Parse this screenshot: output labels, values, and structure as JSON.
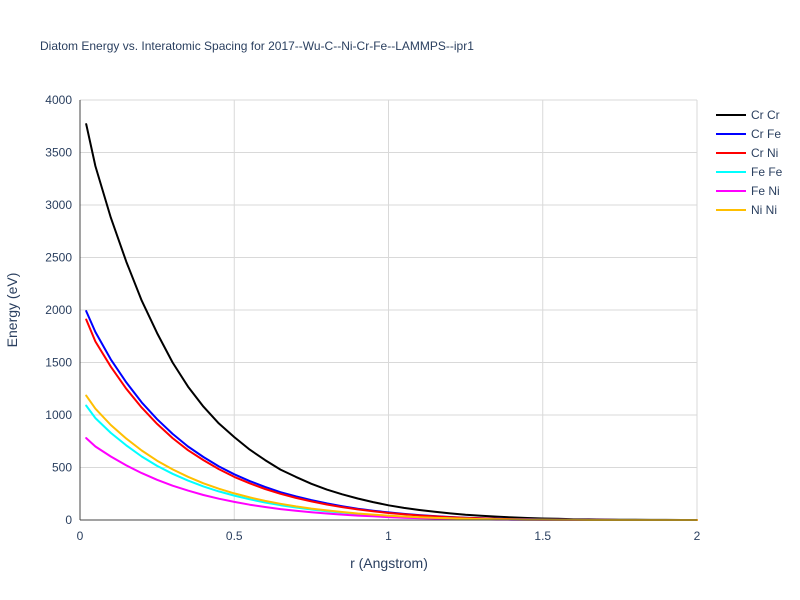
{
  "chart_data": {
    "type": "line",
    "title": "Diatom Energy vs. Interatomic Spacing for 2017--Wu-C--Ni-Cr-Fe--LAMMPS--ipr1",
    "xlabel": "r (Angstrom)",
    "ylabel": "Energy (eV)",
    "xlim": [
      0,
      2
    ],
    "ylim": [
      0,
      4000
    ],
    "xticks": [
      0,
      0.5,
      1,
      1.5,
      2
    ],
    "xtick_labels": [
      "0",
      "0.5",
      "1",
      "1.5",
      "2"
    ],
    "yticks": [
      0,
      500,
      1000,
      1500,
      2000,
      2500,
      3000,
      3500,
      4000
    ],
    "ytick_labels": [
      "0",
      "500",
      "1000",
      "1500",
      "2000",
      "2500",
      "3000",
      "3500",
      "4000"
    ],
    "grid": true,
    "legend_position": "top-right",
    "x": [
      0.02,
      0.05,
      0.1,
      0.15,
      0.2,
      0.25,
      0.3,
      0.35,
      0.4,
      0.45,
      0.5,
      0.55,
      0.6,
      0.65,
      0.7,
      0.75,
      0.8,
      0.85,
      0.9,
      0.95,
      1.0,
      1.05,
      1.1,
      1.15,
      1.2,
      1.25,
      1.3,
      1.35,
      1.4,
      1.45,
      1.5,
      1.55,
      1.6,
      1.65,
      1.7,
      1.75,
      1.8,
      1.85,
      1.9,
      1.95,
      2.0
    ],
    "series": [
      {
        "name": "Cr Cr",
        "color": "#000000",
        "values": [
          3770,
          3370,
          2880,
          2460,
          2090,
          1780,
          1500,
          1270,
          1080,
          920,
          790,
          670,
          570,
          480,
          410,
          345,
          290,
          245,
          205,
          170,
          140,
          115,
          95,
          78,
          63,
          50,
          40,
          32,
          25,
          19,
          14,
          11,
          8,
          6,
          4,
          3,
          2,
          1,
          1,
          0,
          0
        ]
      },
      {
        "name": "Cr Fe",
        "color": "#0000ff",
        "values": [
          1990,
          1790,
          1530,
          1310,
          1120,
          960,
          820,
          700,
          600,
          510,
          435,
          370,
          315,
          265,
          225,
          190,
          158,
          131,
          108,
          89,
          72,
          58,
          47,
          37,
          29,
          22,
          17,
          13,
          9,
          7,
          5,
          3,
          2,
          1,
          1,
          0,
          0,
          0,
          0,
          0,
          0
        ]
      },
      {
        "name": "Cr Ni",
        "color": "#ff0000",
        "values": [
          1910,
          1700,
          1460,
          1250,
          1070,
          915,
          780,
          665,
          570,
          485,
          410,
          350,
          295,
          250,
          210,
          177,
          148,
          123,
          101,
          83,
          67,
          54,
          43,
          34,
          26,
          20,
          15,
          11,
          8,
          6,
          4,
          3,
          2,
          1,
          1,
          0,
          0,
          0,
          0,
          0,
          0
        ]
      },
      {
        "name": "Fe Fe",
        "color": "#00ffff",
        "values": [
          1090,
          970,
          830,
          710,
          605,
          515,
          440,
          375,
          320,
          272,
          232,
          197,
          167,
          141,
          119,
          100,
          84,
          70,
          58,
          47,
          38,
          31,
          24,
          19,
          15,
          11,
          8,
          6,
          4,
          3,
          2,
          1,
          1,
          0,
          0,
          0,
          0,
          0,
          0,
          0,
          0
        ]
      },
      {
        "name": "Fe Ni",
        "color": "#ff00ff",
        "values": [
          780,
          700,
          605,
          520,
          447,
          383,
          327,
          280,
          238,
          203,
          172,
          146,
          124,
          104,
          88,
          74,
          62,
          51,
          42,
          35,
          28,
          22,
          18,
          14,
          11,
          8,
          6,
          4,
          3,
          2,
          1,
          1,
          0,
          0,
          0,
          0,
          0,
          0,
          0,
          0,
          0
        ]
      },
      {
        "name": "Ni Ni",
        "color": "#ffbf00",
        "values": [
          1185,
          1060,
          905,
          775,
          662,
          565,
          482,
          411,
          350,
          298,
          253,
          215,
          182,
          154,
          130,
          109,
          91,
          76,
          62,
          51,
          41,
          33,
          26,
          20,
          16,
          12,
          9,
          6,
          5,
          3,
          2,
          1,
          1,
          0,
          0,
          0,
          0,
          0,
          0,
          0,
          0
        ]
      }
    ]
  }
}
